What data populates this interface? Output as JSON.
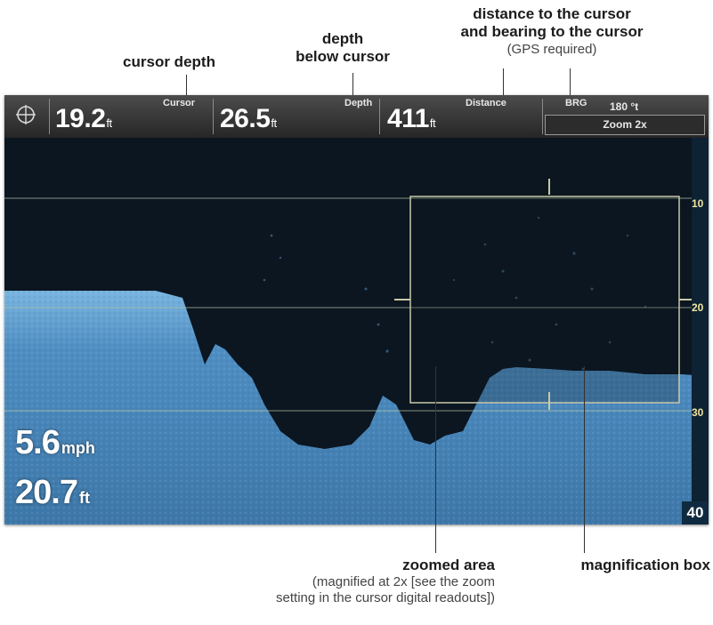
{
  "callouts": {
    "cursor_depth": "cursor depth",
    "depth_below_line1": "depth",
    "depth_below_line2": "below cursor",
    "distance_line1": "distance to the cursor",
    "distance_line2": "and bearing to the cursor",
    "gps_note": "(GPS required)",
    "zoomed_area": "zoomed area",
    "zoomed_note_line1": "(magnified at 2x [see the zoom",
    "zoomed_note_line2": "setting in the cursor digital readouts])",
    "magnification_box": "magnification box"
  },
  "topbar": {
    "gps_icon": "crosshair-icon",
    "cursor_value": "19.2",
    "cursor_unit": "ft",
    "cursor_label": "Cursor",
    "depth_value": "26.5",
    "depth_unit": "ft",
    "depth_label": "Depth",
    "distance_value": "411",
    "distance_unit": "ft",
    "distance_label": "Distance",
    "bearing_label": "BRG",
    "bearing_value": "180 °t",
    "zoom_label": "Zoom 2x"
  },
  "readouts": {
    "speed_value": "5.6",
    "speed_unit": "mph",
    "depth_value": "20.7",
    "depth_unit": "ft"
  },
  "scale": {
    "marks": [
      "10",
      "20",
      "30"
    ],
    "bottom": "40"
  },
  "colors": {
    "water": "#0b1621",
    "bottom_fill": "#5f9fd0",
    "scale_text": "#f0e4a0",
    "grid_line": "#b8c8a8"
  }
}
